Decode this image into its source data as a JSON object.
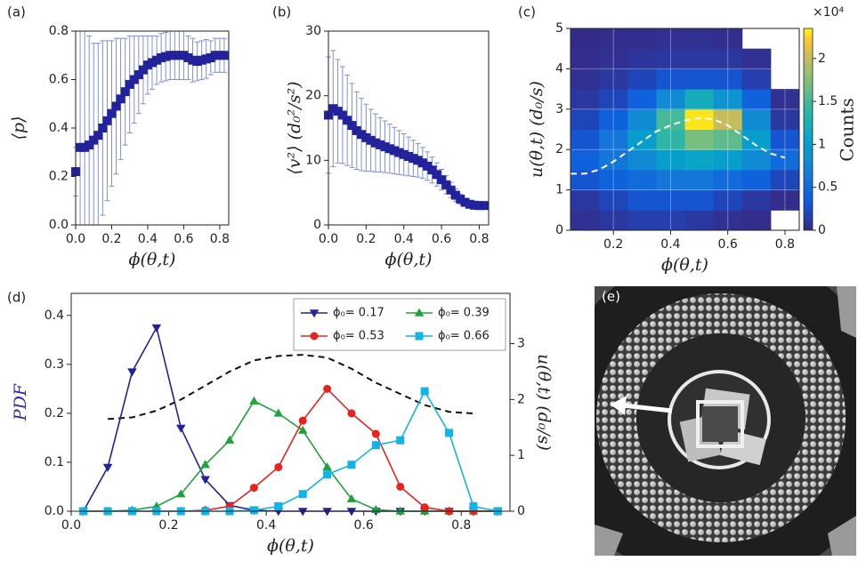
{
  "chart_data": [
    {
      "type": "errorscatter",
      "panel": "(a)",
      "xlabel": "ϕ(θ,t)",
      "ylabel": "⟨p⟩",
      "color": "#22229a",
      "error_color": "#7f8fdc",
      "xlim": [
        0,
        0.85
      ],
      "ylim": [
        0,
        0.8
      ],
      "xticks": [
        {
          "value": 0,
          "label": "0.0"
        },
        0.2,
        0.4,
        0.6,
        0.8
      ],
      "yticks": [
        {
          "value": 0,
          "label": "0.0"
        },
        0.2,
        0.4,
        0.6,
        0.8
      ],
      "x": [
        0,
        0.025,
        0.05,
        0.075,
        0.1,
        0.125,
        0.15,
        0.175,
        0.2,
        0.225,
        0.25,
        0.275,
        0.3,
        0.325,
        0.35,
        0.375,
        0.4,
        0.425,
        0.45,
        0.475,
        0.5,
        0.525,
        0.55,
        0.575,
        0.6,
        0.625,
        0.65,
        0.675,
        0.7,
        0.725,
        0.75,
        0.775,
        0.8,
        0.825
      ],
      "values": [
        0.22,
        0.32,
        0.32,
        0.33,
        0.35,
        0.37,
        0.4,
        0.43,
        0.46,
        0.49,
        0.52,
        0.55,
        0.58,
        0.6,
        0.62,
        0.64,
        0.66,
        0.67,
        0.68,
        0.69,
        0.695,
        0.7,
        0.7,
        0.7,
        0.7,
        0.69,
        0.68,
        0.675,
        0.68,
        0.685,
        0.69,
        0.7,
        0.7,
        0.7
      ],
      "errors": [
        0.1,
        0.48,
        0.48,
        0.45,
        0.4,
        0.38,
        0.36,
        0.33,
        0.3,
        0.28,
        0.25,
        0.22,
        0.2,
        0.18,
        0.16,
        0.14,
        0.12,
        0.11,
        0.1,
        0.1,
        0.1,
        0.1,
        0.1,
        0.1,
        0.1,
        0.09,
        0.09,
        0.08,
        0.08,
        0.08,
        0.07,
        0.07,
        0.07,
        0.07
      ]
    },
    {
      "type": "errorscatter",
      "panel": "(b)",
      "xlabel": "ϕ(θ,t)",
      "ylabel": "⟨v²⟩ (d₀²/s²)",
      "color": "#22229a",
      "error_color": "#7f8fdc",
      "xlim": [
        0,
        0.85
      ],
      "ylim": [
        0,
        30
      ],
      "xticks": [
        {
          "value": 0,
          "label": "0.0"
        },
        0.2,
        0.4,
        0.6,
        0.8
      ],
      "yticks": [
        0,
        10,
        20,
        30
      ],
      "x": [
        0,
        0.025,
        0.05,
        0.075,
        0.1,
        0.125,
        0.15,
        0.175,
        0.2,
        0.225,
        0.25,
        0.275,
        0.3,
        0.325,
        0.35,
        0.375,
        0.4,
        0.425,
        0.45,
        0.475,
        0.5,
        0.525,
        0.55,
        0.575,
        0.6,
        0.625,
        0.65,
        0.675,
        0.7,
        0.725,
        0.75,
        0.775,
        0.8,
        0.825
      ],
      "values": [
        17,
        18,
        17.6,
        17,
        16.2,
        15.4,
        14.6,
        14,
        13.5,
        13.1,
        12.7,
        12.4,
        12.1,
        11.8,
        11.5,
        11.2,
        10.9,
        10.6,
        10.3,
        10,
        9.6,
        9.1,
        8.5,
        7.8,
        7,
        6.2,
        5.4,
        4.6,
        4,
        3.5,
        3.2,
        3.05,
        3,
        3
      ],
      "errors": [
        9,
        9,
        8,
        7.5,
        7,
        6.5,
        6,
        5.6,
        5.2,
        4.8,
        4.5,
        4.2,
        4,
        3.8,
        3.6,
        3.4,
        3.2,
        3,
        2.8,
        2.6,
        2.4,
        2.2,
        2,
        1.8,
        1.6,
        1.4,
        1.2,
        1,
        0.8,
        0.6,
        0.5,
        0.4,
        0.3,
        0.3
      ]
    },
    {
      "type": "heatmap",
      "panel": "(c)",
      "xlabel": "ϕ(θ,t)",
      "ylabel": "u(θ,t) (d₀/s)",
      "colorbar_label": "Counts",
      "colorbar_multiplier": "×10⁴",
      "grid": true,
      "xlim": [
        0.05,
        0.85
      ],
      "ylim": [
        0,
        5
      ],
      "zlim": [
        0,
        2.35
      ],
      "xticks": [
        0.2,
        0.4,
        0.6,
        0.8
      ],
      "yticks": [
        0,
        1,
        2,
        3,
        4,
        5
      ],
      "zticks": [
        0,
        0.5,
        1,
        1.5,
        2
      ],
      "x": [
        0.1,
        0.2,
        0.3,
        0.4,
        0.5,
        0.6,
        0.7,
        0.8
      ],
      "y": [
        0.25,
        0.75,
        1.25,
        1.75,
        2.25,
        2.75,
        3.25,
        3.75,
        4.25,
        4.75
      ],
      "z": [
        [
          0.05,
          0.1,
          0.15,
          0.15,
          0.1,
          0.05,
          0.02,
          null
        ],
        [
          0.1,
          0.2,
          0.3,
          0.3,
          0.3,
          0.2,
          0.1,
          0.02
        ],
        [
          0.3,
          0.4,
          0.5,
          0.6,
          0.6,
          0.5,
          0.4,
          0.2
        ],
        [
          0.4,
          0.6,
          0.8,
          1.0,
          1.1,
          1.0,
          0.8,
          0.5
        ],
        [
          0.3,
          0.6,
          1.0,
          1.4,
          1.7,
          1.6,
          1.0,
          0.3
        ],
        [
          0.2,
          0.4,
          0.8,
          1.5,
          2.3,
          2.0,
          0.8,
          0.1
        ],
        [
          0.1,
          0.2,
          0.4,
          0.8,
          1.2,
          0.9,
          0.4,
          0.05
        ],
        [
          0.05,
          0.1,
          0.2,
          0.3,
          0.3,
          0.3,
          0.15,
          null
        ],
        [
          0.02,
          0.05,
          0.08,
          0.1,
          0.1,
          0.1,
          0.05,
          null
        ],
        [
          0.01,
          0.02,
          0.03,
          0.05,
          0.05,
          0.03,
          null,
          null
        ]
      ],
      "mean_curve": {
        "color": "#ffffff",
        "dash": true,
        "x": [
          0.05,
          0.1,
          0.15,
          0.2,
          0.25,
          0.3,
          0.35,
          0.4,
          0.45,
          0.5,
          0.55,
          0.6,
          0.65,
          0.7,
          0.75,
          0.8
        ],
        "values": [
          1.4,
          1.4,
          1.5,
          1.7,
          1.95,
          2.2,
          2.45,
          2.6,
          2.72,
          2.78,
          2.75,
          2.6,
          2.35,
          2.1,
          1.9,
          1.8
        ]
      }
    },
    {
      "type": "line",
      "panel": "(d)",
      "xlabel": "ϕ(θ,t)",
      "ylabel": "PDF",
      "y2label": "u(θ,t) (d₀/s)",
      "ylabel_color": "#2a2aa8",
      "legend": "upper right",
      "xlim": [
        0,
        0.9
      ],
      "ylim": [
        0,
        0.445
      ],
      "y2lim": [
        0,
        3.9
      ],
      "xticks": [
        {
          "value": 0,
          "label": "0.0"
        },
        0.2,
        0.4,
        0.6,
        0.8
      ],
      "yticks": [
        {
          "value": 0,
          "label": "0.0"
        },
        0.1,
        0.2,
        0.3,
        0.4
      ],
      "y2ticks": [
        0,
        1,
        2,
        3
      ],
      "x": [
        0.025,
        0.075,
        0.125,
        0.175,
        0.225,
        0.275,
        0.325,
        0.375,
        0.425,
        0.475,
        0.525,
        0.575,
        0.625,
        0.675,
        0.725,
        0.775,
        0.825,
        0.875
      ],
      "series": [
        {
          "name": "ϕ₀= 0.17",
          "color": "#22229a",
          "marker": "v",
          "values": [
            0,
            0.09,
            0.285,
            0.375,
            0.17,
            0.065,
            0.012,
            0.002,
            0,
            0,
            0,
            0,
            0,
            0,
            0,
            0,
            0,
            0
          ]
        },
        {
          "name": "ϕ₀= 0.39",
          "color": "#1ea33a",
          "marker": "^",
          "values": [
            0,
            0,
            0.002,
            0.01,
            0.035,
            0.095,
            0.145,
            0.225,
            0.2,
            0.165,
            0.09,
            0.025,
            0.003,
            0,
            0,
            0,
            0,
            0
          ]
        },
        {
          "name": "ϕ₀= 0.53",
          "color": "#e8231f",
          "marker": "o",
          "values": [
            0,
            0,
            0,
            0,
            0,
            0.002,
            0.01,
            0.048,
            0.09,
            0.185,
            0.25,
            0.2,
            0.158,
            0.05,
            0.008,
            0,
            0,
            0
          ]
        },
        {
          "name": "ϕ₀= 0.66",
          "color": "#12b3e6",
          "marker": "s",
          "values": [
            0,
            0,
            0,
            0,
            0,
            0,
            0,
            0.002,
            0.01,
            0.035,
            0.075,
            0.095,
            0.135,
            0.145,
            0.245,
            0.16,
            0.01,
            0
          ]
        }
      ],
      "mean_curve": {
        "axis": "y2",
        "color": "#111111",
        "dash": true,
        "x": [
          0.075,
          0.125,
          0.175,
          0.225,
          0.275,
          0.325,
          0.375,
          0.425,
          0.475,
          0.525,
          0.575,
          0.625,
          0.675,
          0.725,
          0.775,
          0.825
        ],
        "values": [
          1.65,
          1.68,
          1.8,
          2.0,
          2.25,
          2.5,
          2.7,
          2.78,
          2.8,
          2.75,
          2.55,
          2.3,
          2.1,
          1.9,
          1.78,
          1.75
        ]
      }
    },
    {
      "type": "image",
      "panel": "(e)"
    }
  ]
}
